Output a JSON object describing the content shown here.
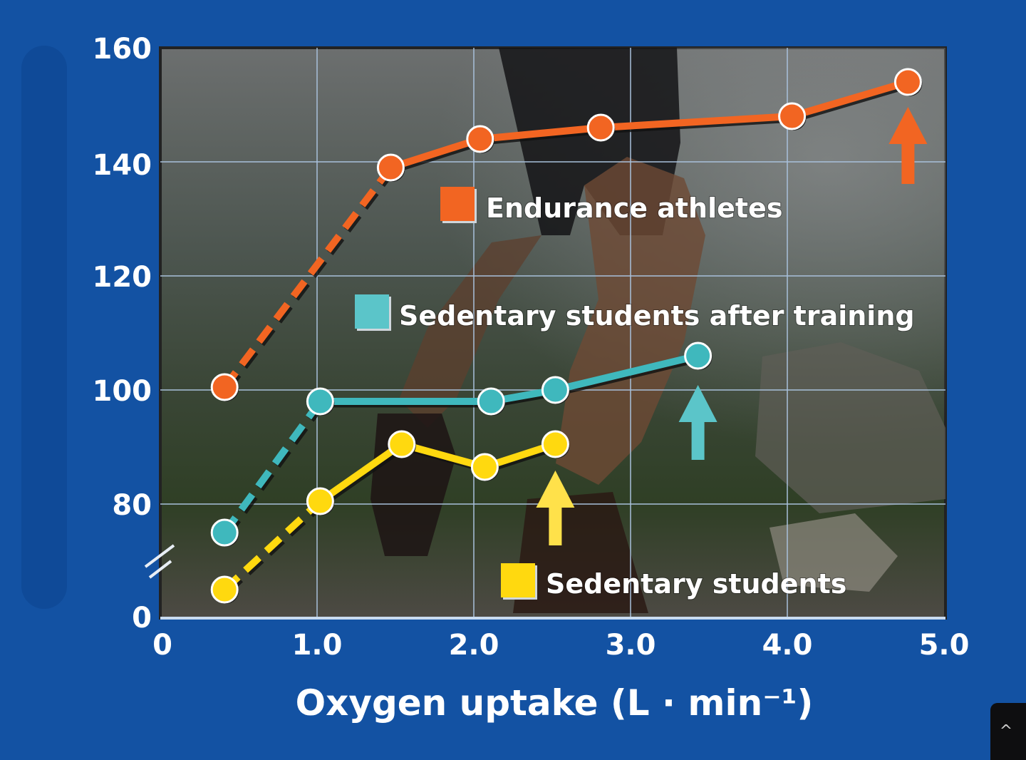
{
  "chart_data": {
    "type": "line",
    "title": "",
    "xlabel": "Oxygen uptake (L · min⁻¹)",
    "ylabel": "",
    "xlim": [
      0,
      5.0
    ],
    "ylim": [
      0,
      160
    ],
    "y_axis_break": "between 0 and 80 (axis break marker)",
    "x_ticks": [
      "0",
      "1.0",
      "2.0",
      "3.0",
      "4.0",
      "5.0"
    ],
    "y_ticks": [
      "0",
      "80",
      "100",
      "120",
      "140",
      "160"
    ],
    "grid": true,
    "background": "photo of trail runner",
    "series": [
      {
        "name": "Endurance athletes",
        "color": "#f26522",
        "x": [
          0.41,
          1.47,
          2.04,
          2.81,
          4.03,
          4.77
        ],
        "y": [
          100.5,
          139,
          144,
          146,
          148,
          154
        ],
        "first_segment_dashed": true,
        "max_arrow_at_x": 4.77
      },
      {
        "name": "Sedentary students after training",
        "color": "#3fb8bd",
        "x": [
          0.41,
          1.02,
          2.11,
          2.52,
          3.43
        ],
        "y": [
          75,
          98,
          98,
          100,
          106
        ],
        "first_segment_dashed": true,
        "max_arrow_at_x": 3.43
      },
      {
        "name": "Sedentary students",
        "color": "#ffd90f",
        "x": [
          0.41,
          1.02,
          1.54,
          2.07,
          2.52
        ],
        "y": [
          65,
          80.5,
          90.5,
          86.5,
          90.5
        ],
        "first_segment_dashed": true,
        "max_arrow_at_x": 2.52
      }
    ],
    "legend": [
      {
        "label": "Endurance athletes",
        "color": "#f26522"
      },
      {
        "label": "Sedentary students after training",
        "color": "#5bc5c9"
      },
      {
        "label": "Sedentary students",
        "color": "#ffd90f"
      }
    ]
  },
  "ui": {
    "scroll_top_icon": "^"
  }
}
